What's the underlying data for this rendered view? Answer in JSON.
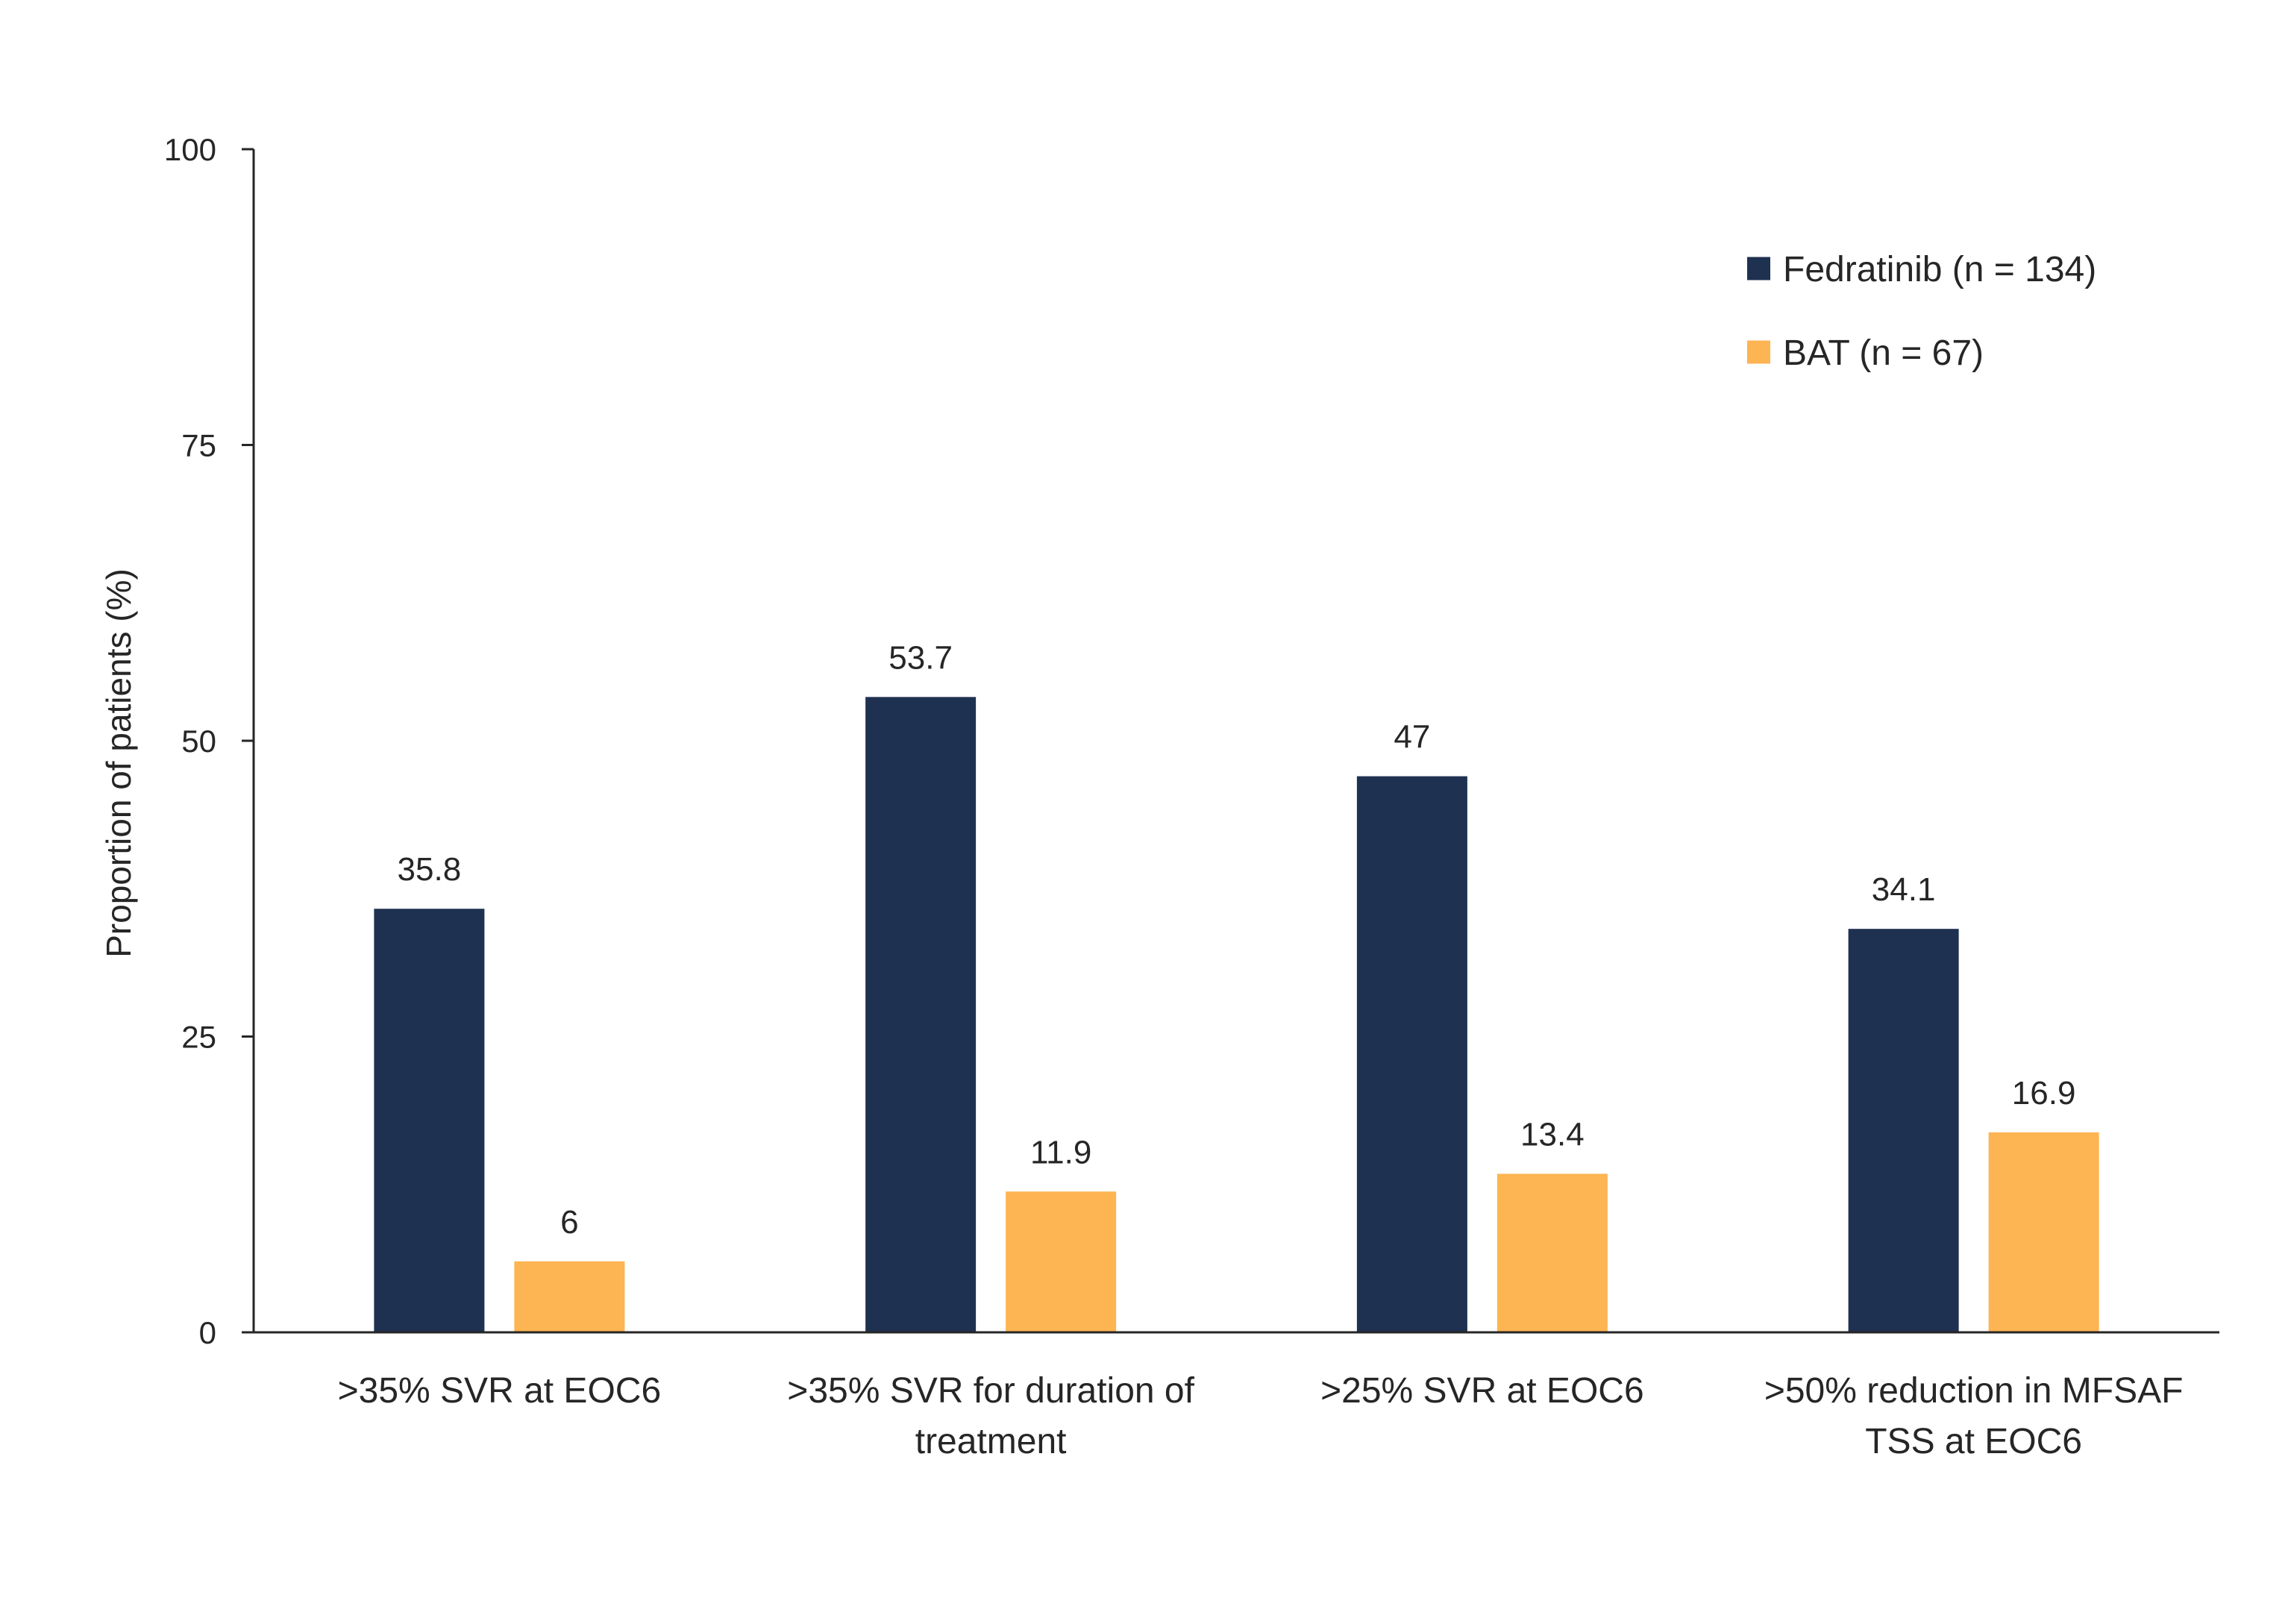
{
  "chart_data": {
    "type": "bar",
    "categories": [
      ">35% SVR at EOC6",
      ">35% SVR for duration of treatment",
      ">25% SVR at EOC6",
      ">50% reduction in MFSAF TSS at EOC6"
    ],
    "category_lines": [
      [
        ">35% SVR at EOC6"
      ],
      [
        ">35% SVR for duration of",
        "treatment"
      ],
      [
        ">25% SVR at EOC6"
      ],
      [
        ">50% reduction in MFSAF",
        "TSS at EOC6"
      ]
    ],
    "series": [
      {
        "name": "Fedratinib (n = 134)",
        "color": "#1f3150",
        "values": [
          35.8,
          53.7,
          47,
          34.1
        ],
        "labels": [
          "35.8",
          "53.7",
          "47",
          "34.1"
        ]
      },
      {
        "name": "BAT (n = 67)",
        "color": "#fdb452",
        "values": [
          6,
          11.9,
          13.4,
          16.9
        ],
        "labels": [
          "6",
          "11.9",
          "13.4",
          "16.9"
        ]
      }
    ],
    "ylabel": "Proportion of patients (%)",
    "xlabel": "",
    "ylim": [
      0,
      100
    ],
    "yticks": [
      0,
      25,
      50,
      75,
      100
    ],
    "ytick_labels": [
      "0",
      "25",
      "50",
      "75",
      "100"
    ],
    "legend_position": "top-right",
    "grid": false
  }
}
